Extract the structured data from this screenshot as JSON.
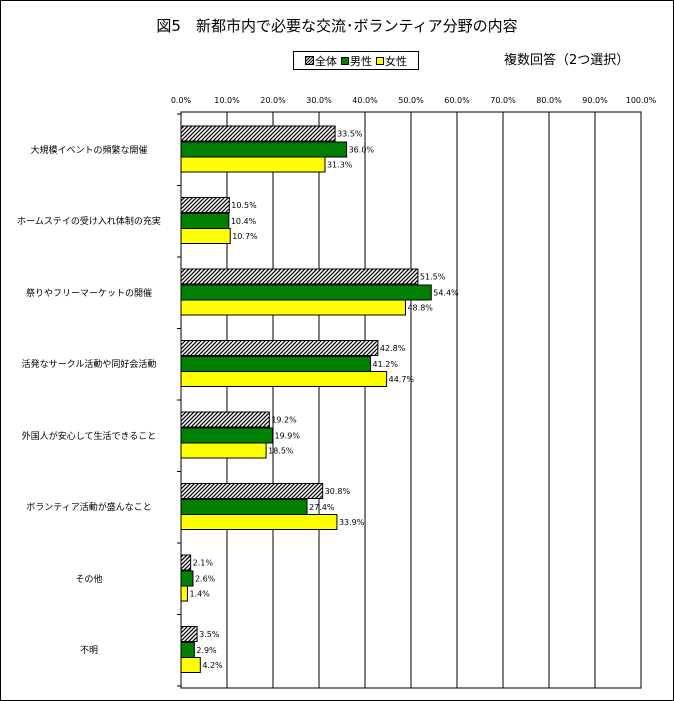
{
  "chart_data": {
    "type": "bar",
    "orientation": "horizontal",
    "title": "図5　新都市内で必要な交流･ボランティア分野の内容",
    "subtitle": "複数回答（2つ選択）",
    "legend_position": "top-center",
    "grid": true,
    "xlim": [
      0,
      100
    ],
    "ticks": [
      "0.0%",
      "10.0%",
      "20.0%",
      "30.0%",
      "40.0%",
      "50.0%",
      "60.0%",
      "70.0%",
      "80.0%",
      "90.0%",
      "100.0%"
    ],
    "categories": [
      "大規模イベントの頻繁な開催",
      "ホームステイの受け入れ体制の充実",
      "祭りやフリーマーケットの開催",
      "活発なサークル活動や同好会活動",
      "外国人が安心して生活できること",
      "ボランティア活動が盛んなこと",
      "その他",
      "不明"
    ],
    "series": [
      {
        "name": "全体",
        "color": "#000000",
        "fill": "hatch",
        "values": [
          33.5,
          10.5,
          51.5,
          42.8,
          19.2,
          30.8,
          2.1,
          3.5
        ],
        "labels": [
          "33.5%",
          "10.5%",
          "51.5%",
          "42.8%",
          "19.2%",
          "30.8%",
          "2.1%",
          "3.5%"
        ]
      },
      {
        "name": "男性",
        "color": "#007f00",
        "fill": "solid",
        "values": [
          36.0,
          10.4,
          54.4,
          41.2,
          19.9,
          27.4,
          2.6,
          2.9
        ],
        "labels": [
          "36.0%",
          "10.4%",
          "54.4%",
          "41.2%",
          "19.9%",
          "27.4%",
          "2.6%",
          "2.9%"
        ]
      },
      {
        "name": "女性",
        "color": "#ffff00",
        "fill": "solid",
        "values": [
          31.3,
          10.7,
          48.8,
          44.7,
          18.5,
          33.9,
          1.4,
          4.2
        ],
        "labels": [
          "31.3%",
          "10.7%",
          "48.8%",
          "44.7%",
          "18.5%",
          "33.9%",
          "1.4%",
          "4.2%"
        ]
      }
    ]
  }
}
